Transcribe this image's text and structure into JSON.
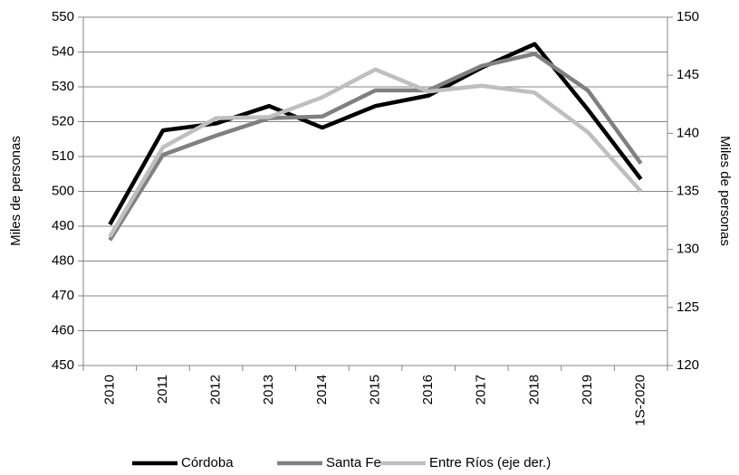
{
  "chart_data": {
    "type": "line",
    "categories": [
      "2010",
      "2011",
      "2012",
      "2013",
      "2014",
      "2015",
      "2016",
      "2017",
      "2018",
      "2019",
      "1S-2020"
    ],
    "series": [
      {
        "name": "Córdoba",
        "color": "#000000",
        "values": [
          490.5,
          517.5,
          519.5,
          524.5,
          518.3,
          524.5,
          527.5,
          535.5,
          542.3,
          523.5,
          503.5
        ]
      },
      {
        "name": "Santa Fe",
        "color": "#808080",
        "values": [
          486,
          510.5,
          516,
          521,
          521.5,
          529,
          529,
          536,
          539.5,
          529,
          508
        ]
      },
      {
        "name": "Entre Ríos (eje der.)",
        "color": "#bfbfbf",
        "axis": "y2",
        "values": [
          131.1,
          138.8,
          141.3,
          141.4,
          143.1,
          145.5,
          143.6,
          144.1,
          143.5,
          140.1,
          135.0
        ]
      }
    ],
    "ylabel": "Miles de personas",
    "y2label": "Miles de personas",
    "ylim": [
      450,
      550
    ],
    "yticks": [
      450,
      460,
      470,
      480,
      490,
      500,
      510,
      520,
      530,
      540,
      550
    ],
    "y2lim": [
      120,
      150
    ],
    "y2ticks": [
      120,
      125,
      130,
      135,
      140,
      145,
      150
    ],
    "grid": true,
    "legend": "bottom"
  }
}
